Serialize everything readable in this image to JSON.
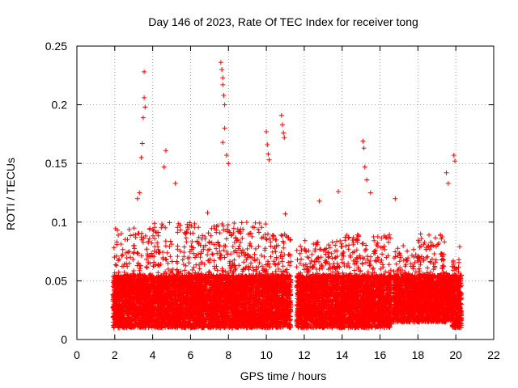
{
  "chart_data": {
    "type": "scatter",
    "title": "Day 146 of 2023, Rate Of TEC Index for receiver tong",
    "xlabel": "GPS time / hours",
    "ylabel": "ROTI / TECUs",
    "xlim": [
      0,
      22
    ],
    "ylim": [
      0,
      0.25
    ],
    "xticks": [
      "0",
      "2",
      "4",
      "6",
      "8",
      "10",
      "12",
      "14",
      "16",
      "18",
      "20",
      "22"
    ],
    "yticks": [
      "0",
      "0.05",
      "0.1",
      "0.15",
      "0.2",
      "0.25"
    ],
    "grid": true,
    "marker": "+",
    "marker_color": "#ff0000",
    "series": [
      {
        "name": "ROTI",
        "outliers": {
          "x": [
            3.55,
            3.55,
            3.6,
            3.5,
            3.45,
            3.4,
            3.3,
            3.2,
            4.7,
            4.6,
            5.2,
            7.6,
            7.65,
            7.7,
            7.7,
            7.75,
            7.8,
            7.8,
            7.7,
            7.9,
            8.0,
            10.0,
            10.05,
            10.1,
            10.15,
            10.8,
            10.85,
            10.9,
            10.95,
            15.1,
            15.15,
            15.2,
            15.3,
            15.5,
            16.8,
            19.5,
            19.6,
            19.9,
            19.95,
            20.2,
            11.0,
            12.8,
            13.8,
            6.9
          ],
          "y": [
            0.228,
            0.206,
            0.198,
            0.189,
            0.167,
            0.155,
            0.125,
            0.12,
            0.161,
            0.147,
            0.133,
            0.236,
            0.23,
            0.223,
            0.217,
            0.208,
            0.2,
            0.18,
            0.168,
            0.157,
            0.15,
            0.177,
            0.166,
            0.158,
            0.153,
            0.191,
            0.183,
            0.176,
            0.172,
            0.169,
            0.163,
            0.147,
            0.136,
            0.125,
            0.12,
            0.142,
            0.133,
            0.157,
            0.152,
            0.079,
            0.107,
            0.118,
            0.126,
            0.108
          ]
        },
        "activity_segments": {
          "start_hour": [
            1.9,
            4.0,
            6.0,
            8.0,
            10.0,
            11.6,
            12.0,
            14.0,
            16.7,
            18.0,
            19.5,
            19.8
          ],
          "end_hour": [
            4.0,
            6.0,
            8.0,
            10.0,
            11.3,
            12.0,
            14.0,
            16.6,
            18.0,
            19.5,
            19.8,
            20.3
          ],
          "typical_min": [
            0.01,
            0.01,
            0.01,
            0.01,
            0.01,
            0.01,
            0.01,
            0.01,
            0.015,
            0.015,
            0.015,
            0.01
          ],
          "typical_max": [
            0.095,
            0.1,
            0.1,
            0.1,
            0.09,
            0.08,
            0.085,
            0.09,
            0.08,
            0.09,
            0.06,
            0.07
          ]
        }
      }
    ]
  }
}
